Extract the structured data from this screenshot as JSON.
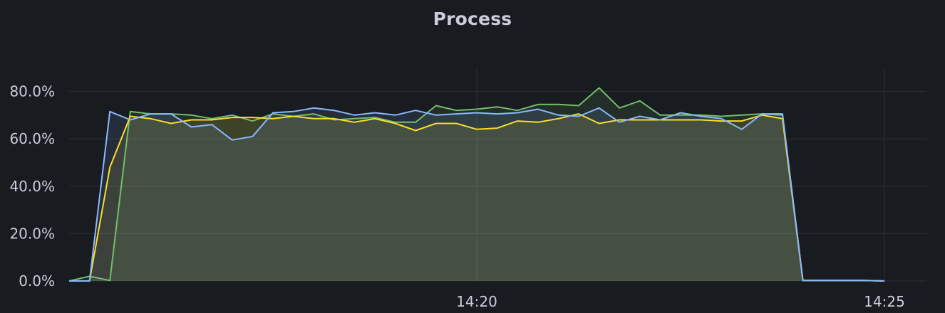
{
  "panel": {
    "title": "Process"
  },
  "chart_data": {
    "type": "area",
    "title": "Process",
    "xlabel": "",
    "ylabel": "",
    "y_ticks": [
      "0.0%",
      "20.0%",
      "40.0%",
      "60.0%",
      "80.0%"
    ],
    "y_tick_values": [
      0,
      20,
      40,
      60,
      80
    ],
    "ylim": [
      0,
      90
    ],
    "x_ticks": [
      "14:20",
      "14:25"
    ],
    "x_tick_values": [
      40,
      80
    ],
    "xlim": [
      0,
      80.5
    ],
    "grid": true,
    "legend": "none",
    "x": [
      0,
      2,
      4,
      6,
      8,
      10,
      12,
      14,
      16,
      18,
      20,
      22,
      24,
      26,
      28,
      30,
      32,
      34,
      36,
      38,
      40,
      42,
      44,
      46,
      48,
      50,
      52,
      54,
      56,
      58,
      60,
      62,
      64,
      66,
      68,
      70,
      72,
      74,
      76,
      78,
      80
    ],
    "series": [
      {
        "color": "#73bf69",
        "values": [
          0.0,
          2.0,
          0.2,
          71.5,
          70.5,
          70.5,
          70.0,
          68.5,
          70.0,
          67.5,
          70.5,
          69.5,
          70.5,
          68.0,
          68.5,
          69.0,
          67.0,
          67.0,
          74.0,
          72.0,
          72.5,
          73.5,
          72.0,
          74.5,
          74.5,
          74.0,
          81.5,
          73.0,
          76.0,
          70.0,
          70.0,
          70.0,
          69.5,
          70.0,
          70.5,
          70.0,
          0.2,
          0.2,
          0.2,
          0.2,
          0.0
        ]
      },
      {
        "color": "#fade2a",
        "values": [
          0.0,
          0.0,
          48.0,
          69.5,
          68.5,
          66.5,
          68.0,
          68.0,
          69.0,
          69.0,
          68.5,
          69.5,
          68.5,
          68.5,
          67.0,
          68.5,
          66.5,
          63.5,
          66.5,
          66.5,
          64.0,
          64.5,
          67.5,
          67.0,
          68.5,
          70.5,
          66.5,
          68.0,
          68.0,
          68.0,
          68.0,
          68.0,
          67.5,
          67.5,
          70.0,
          68.5,
          0.2,
          0.2,
          0.2,
          0.2,
          0.0
        ]
      },
      {
        "color": "#8ab8ff",
        "values": [
          0.0,
          0.0,
          71.5,
          68.0,
          70.5,
          70.5,
          65.0,
          66.0,
          59.5,
          61.0,
          71.0,
          71.5,
          73.0,
          72.0,
          70.0,
          71.0,
          70.0,
          72.0,
          70.0,
          70.5,
          71.0,
          70.5,
          71.0,
          72.5,
          70.0,
          69.5,
          73.0,
          67.0,
          69.5,
          68.0,
          71.0,
          69.5,
          68.5,
          64.0,
          70.5,
          70.5,
          0.2,
          0.2,
          0.2,
          0.2,
          0.0
        ]
      }
    ]
  }
}
